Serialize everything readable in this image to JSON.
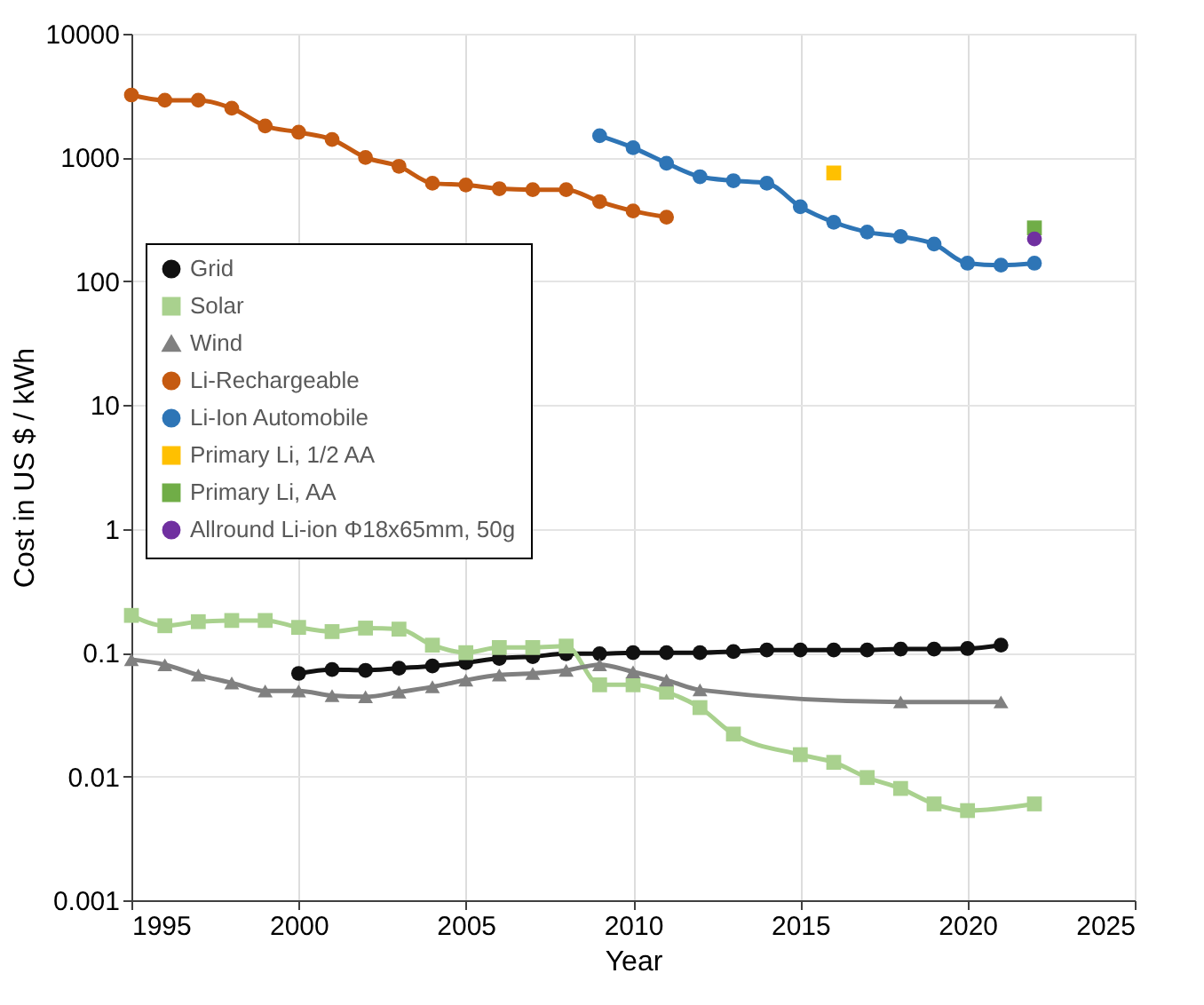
{
  "chart_data": {
    "type": "line",
    "xlabel": "Year",
    "ylabel": "Cost in US $ / kWh",
    "log": "y",
    "grid": true,
    "legend": "left",
    "xlim": [
      1995,
      2025
    ],
    "xticks": [
      1995,
      2000,
      2005,
      2010,
      2015,
      2020,
      2025
    ],
    "ylim": [
      0.001,
      10000
    ],
    "yticks": [
      0.001,
      0.01,
      0.1,
      1,
      10,
      100,
      1000,
      10000
    ],
    "series": [
      {
        "name": "Grid",
        "type": "line",
        "marker": "circle",
        "color": "#111111",
        "x": [
          2000,
          2001,
          2002,
          2003,
          2004,
          2005,
          2006,
          2007,
          2008,
          2009,
          2010,
          2011,
          2012,
          2013,
          2014,
          2015,
          2016,
          2017,
          2018,
          2019,
          2020,
          2021
        ],
        "values": [
          0.068,
          0.073,
          0.072,
          0.075,
          0.078,
          0.083,
          0.09,
          0.093,
          0.098,
          0.098,
          0.1,
          0.1,
          0.1,
          0.102,
          0.105,
          0.105,
          0.105,
          0.105,
          0.107,
          0.107,
          0.108,
          0.115
        ]
      },
      {
        "name": "Solar",
        "type": "line",
        "marker": "square",
        "color": "#a9d18e",
        "x": [
          1995,
          1996,
          1997,
          1998,
          1999,
          2000,
          2001,
          2002,
          2003,
          2004,
          2005,
          2006,
          2007,
          2008,
          2009,
          2010,
          2011,
          2012,
          2013,
          2015,
          2016,
          2017,
          2018,
          2019,
          2020,
          2022
        ],
        "values": [
          0.2,
          0.165,
          0.178,
          0.182,
          0.182,
          0.16,
          0.148,
          0.158,
          0.155,
          0.115,
          0.1,
          0.11,
          0.11,
          0.113,
          0.055,
          0.055,
          0.048,
          0.036,
          0.022,
          0.015,
          0.013,
          0.0098,
          0.008,
          0.006,
          0.0053,
          0.006
        ]
      },
      {
        "name": "Wind",
        "type": "line",
        "marker": "triangle",
        "color": "#808080",
        "x": [
          1995,
          1996,
          1997,
          1998,
          1999,
          2000,
          2001,
          2002,
          2003,
          2004,
          2005,
          2006,
          2007,
          2008,
          2009,
          2010,
          2011,
          2012,
          2018,
          2021
        ],
        "values": [
          0.088,
          0.08,
          0.066,
          0.057,
          0.049,
          0.049,
          0.045,
          0.044,
          0.048,
          0.053,
          0.06,
          0.066,
          0.068,
          0.072,
          0.08,
          0.07,
          0.06,
          0.05,
          0.04,
          0.04
        ]
      },
      {
        "name": "Li-Rechargeable",
        "type": "line",
        "marker": "circle",
        "color": "#c55a11",
        "x": [
          1995,
          1996,
          1997,
          1998,
          1999,
          2000,
          2001,
          2002,
          2003,
          2004,
          2005,
          2006,
          2007,
          2008,
          2009,
          2010,
          2011
        ],
        "values": [
          3200,
          2900,
          2900,
          2500,
          1800,
          1600,
          1400,
          1000,
          850,
          620,
          600,
          560,
          550,
          550,
          440,
          370,
          330
        ]
      },
      {
        "name": "Li-Ion Automobile",
        "type": "line",
        "marker": "circle",
        "color": "#2e75b6",
        "x": [
          2009,
          2010,
          2011,
          2012,
          2013,
          2014,
          2015,
          2016,
          2017,
          2018,
          2019,
          2020,
          2021,
          2022
        ],
        "values": [
          1500,
          1200,
          900,
          700,
          650,
          620,
          400,
          300,
          250,
          230,
          200,
          140,
          135,
          140
        ]
      },
      {
        "name": "Primary Li, 1/2 AA",
        "type": "scatter",
        "marker": "square",
        "color": "#ffc000",
        "x": [
          2016
        ],
        "values": [
          750
        ]
      },
      {
        "name": "Primary Li, AA",
        "type": "scatter",
        "marker": "square",
        "color": "#70ad47",
        "x": [
          2022
        ],
        "values": [
          270
        ]
      },
      {
        "name": "Allround Li-ion Φ18x65mm, 50g",
        "type": "scatter",
        "marker": "circle",
        "color": "#7030a0",
        "x": [
          2022
        ],
        "values": [
          220
        ]
      }
    ]
  }
}
